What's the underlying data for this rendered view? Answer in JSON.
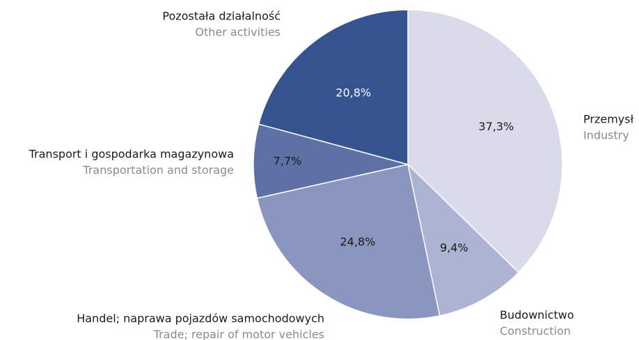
{
  "chart_data": {
    "type": "pie",
    "categories": [
      "Przemysł",
      "Budownictwo",
      "Handel; naprawa pojazdów samochodowych",
      "Transport i gospodarka magazynowa",
      "Pozostała działalność"
    ],
    "categories_en": [
      "Industry",
      "Construction",
      "Trade; repair of motor vehicles",
      "Transportation and storage",
      "Other activities"
    ],
    "values": [
      37.3,
      9.4,
      24.8,
      7.7,
      20.8
    ],
    "value_labels": [
      "37,3%",
      "9,4%",
      "24,8%",
      "7,7%",
      "20,8%"
    ],
    "colors": [
      "#d9dbea",
      "#adb3d3",
      "#8a96c0",
      "#5f70a6",
      "#34538f"
    ]
  }
}
